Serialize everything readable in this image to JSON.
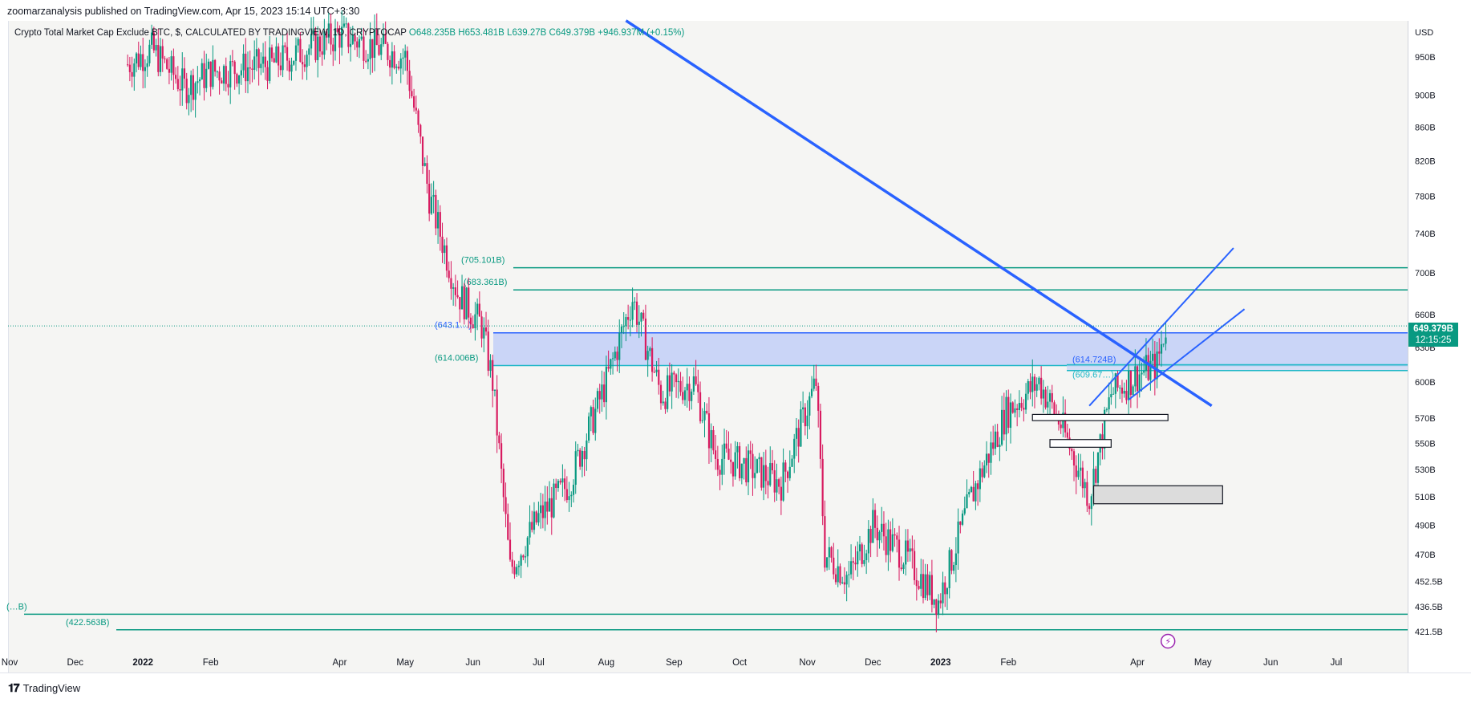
{
  "header": {
    "publisher": "zoomarzanalysis published on TradingView.com, Apr 15, 2023 15:14 UTC+3:30"
  },
  "legend": {
    "title": "Crypto Total Market Cap Exclude BTC, $, CALCULATED BY TRADINGVIEW, 1D, CRYPTOCAP",
    "open": "O648.235B",
    "high": "H653.481B",
    "low": "L639.27B",
    "close": "C649.379B",
    "change": "+946.937M (+0.15%)"
  },
  "footer": {
    "brand": "TradingView"
  },
  "colors": {
    "up": "#089981",
    "down": "#d81b60",
    "trend": "#2962ff",
    "level": "#089981",
    "zone": "#c7d3f7"
  },
  "chart_data": {
    "type": "candlestick",
    "currency": "USD",
    "last_price": "649.379B",
    "countdown": "12:15:25",
    "y_scale": "log",
    "y_ticks": [
      "950B",
      "900B",
      "860B",
      "820B",
      "780B",
      "740B",
      "700B",
      "660B",
      "630B",
      "600B",
      "570B",
      "550B",
      "530B",
      "510B",
      "490B",
      "470B",
      "452.5B",
      "436.5B",
      "421.5B"
    ],
    "x_ticks": [
      "Nov",
      "Dec",
      "2022",
      "Feb",
      "Apr",
      "May",
      "Jun",
      "Jul",
      "Aug",
      "Sep",
      "Oct",
      "Nov",
      "Dec",
      "2023",
      "Feb",
      "Apr",
      "May",
      "Jun",
      "Jul"
    ],
    "horizontal_levels": [
      {
        "label": "(705.101B)",
        "value": 705.101
      },
      {
        "label": "(683.361B)",
        "value": 683.361
      },
      {
        "label": "(643.1…)",
        "value": 643.1
      },
      {
        "label": "(614.006B)",
        "value": 614.006
      },
      {
        "label": "(614.724B)",
        "value": 614.724
      },
      {
        "label": "(609.67…)",
        "value": 609.67
      },
      {
        "label": "(…B)",
        "value": 432
      },
      {
        "label": "(422.563B)",
        "value": 422.563
      }
    ],
    "price_path": [
      {
        "date": "2021-12-25",
        "value": 940
      },
      {
        "date": "2022-01-05",
        "value": 960
      },
      {
        "date": "2022-01-20",
        "value": 910
      },
      {
        "date": "2022-02-01",
        "value": 930
      },
      {
        "date": "2022-03-01",
        "value": 940
      },
      {
        "date": "2022-04-01",
        "value": 980
      },
      {
        "date": "2022-05-01",
        "value": 950
      },
      {
        "date": "2022-05-12",
        "value": 780
      },
      {
        "date": "2022-05-25",
        "value": 680
      },
      {
        "date": "2022-06-05",
        "value": 650
      },
      {
        "date": "2022-06-10",
        "value": 600
      },
      {
        "date": "2022-06-18",
        "value": 460
      },
      {
        "date": "2022-07-01",
        "value": 495
      },
      {
        "date": "2022-07-15",
        "value": 520
      },
      {
        "date": "2022-08-01",
        "value": 600
      },
      {
        "date": "2022-08-13",
        "value": 675
      },
      {
        "date": "2022-08-26",
        "value": 590
      },
      {
        "date": "2022-09-10",
        "value": 600
      },
      {
        "date": "2022-09-20",
        "value": 540
      },
      {
        "date": "2022-10-01",
        "value": 535
      },
      {
        "date": "2022-10-20",
        "value": 520
      },
      {
        "date": "2022-11-05",
        "value": 600
      },
      {
        "date": "2022-11-09",
        "value": 470
      },
      {
        "date": "2022-11-20",
        "value": 455
      },
      {
        "date": "2022-12-01",
        "value": 490
      },
      {
        "date": "2022-12-15",
        "value": 470
      },
      {
        "date": "2022-12-31",
        "value": 440
      },
      {
        "date": "2023-01-15",
        "value": 510
      },
      {
        "date": "2023-01-31",
        "value": 575
      },
      {
        "date": "2023-02-15",
        "value": 600
      },
      {
        "date": "2023-02-25",
        "value": 565
      },
      {
        "date": "2023-03-10",
        "value": 510
      },
      {
        "date": "2023-03-20",
        "value": 590
      },
      {
        "date": "2023-03-31",
        "value": 605
      },
      {
        "date": "2023-04-10",
        "value": 615
      },
      {
        "date": "2023-04-14",
        "value": 649.379
      }
    ],
    "zones": [
      {
        "from": 614.006,
        "to": 643.1
      },
      {
        "from": 609.67,
        "to": 614.724
      }
    ],
    "boxes": [
      {
        "from_date": "2023-02-12",
        "to_date": "2023-04-15",
        "low": 568,
        "high": 573
      },
      {
        "from_date": "2023-02-20",
        "to_date": "2023-03-20",
        "low": 547,
        "high": 553
      },
      {
        "from_date": "2023-03-12",
        "to_date": "2023-05-10",
        "low": 505,
        "high": 518
      }
    ],
    "trendlines": [
      {
        "from": {
          "date": "2022-08-10",
          "value": 1000
        },
        "to": {
          "date": "2023-05-05",
          "value": 580
        }
      },
      {
        "from": {
          "date": "2023-03-10",
          "value": 580
        },
        "to": {
          "date": "2023-05-15",
          "value": 725
        }
      },
      {
        "from": {
          "date": "2023-03-28",
          "value": 585
        },
        "to": {
          "date": "2023-05-20",
          "value": 665
        }
      }
    ]
  }
}
